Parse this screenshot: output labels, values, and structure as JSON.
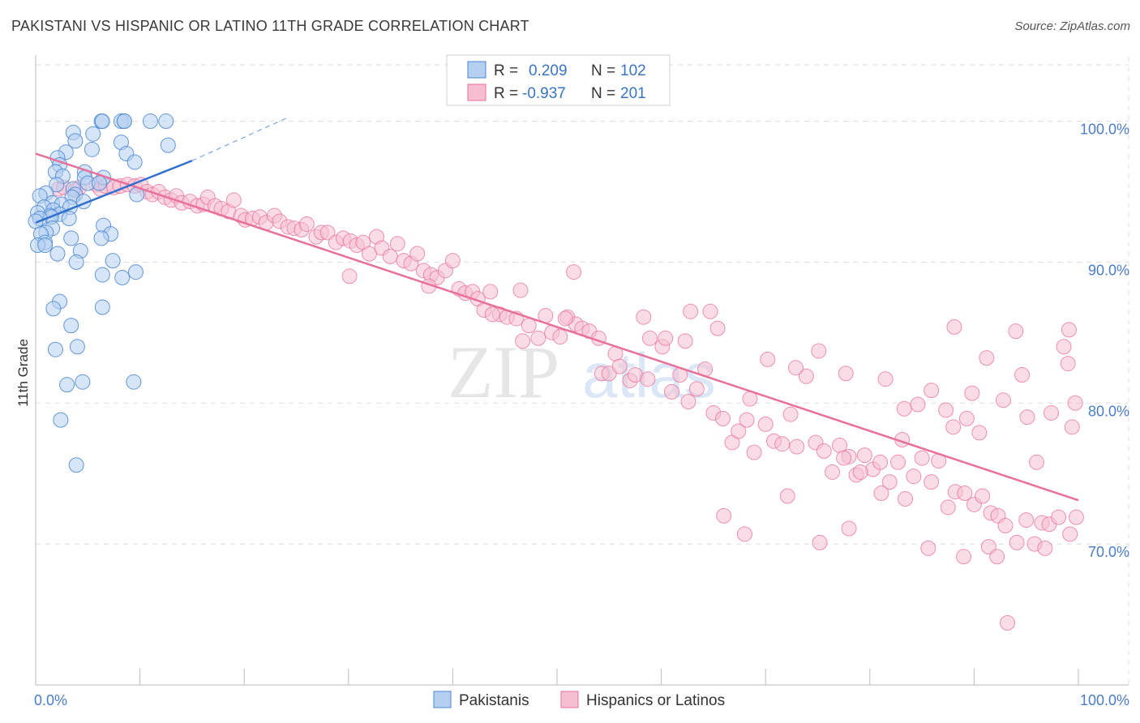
{
  "title": "PAKISTANI VS HISPANIC OR LATINO 11TH GRADE CORRELATION CHART",
  "source": "Source: ZipAtlas.com",
  "watermark": {
    "zip": "ZIP",
    "atlas": "atlas"
  },
  "colors": {
    "blue": "#4a86d4",
    "blue_fill": "#b4cff0",
    "pink": "#e8709a",
    "pink_fill": "#f6bfd1",
    "axis_label": "#4a7cc7",
    "grid": "#dddddd"
  },
  "legend": {
    "rows": [
      {
        "r_label": "R =",
        "r_value": "0.209",
        "n_label": "N =",
        "n_value": "102"
      },
      {
        "r_label": "R =",
        "r_value": "-0.937",
        "n_label": "N =",
        "n_value": "201"
      }
    ]
  },
  "bottom_legend": [
    "Pakistanis",
    "Hispanics or Latinos"
  ],
  "chart_data": {
    "type": "scatter",
    "title": "PAKISTANI VS HISPANIC OR LATINO 11TH GRADE CORRELATION CHART",
    "xlabel": "",
    "ylabel": "11th Grade",
    "xlim": [
      0,
      100
    ],
    "ylim": [
      60,
      104
    ],
    "x_tick_labels": [
      "0.0%",
      "100.0%"
    ],
    "y_ticks": [
      70,
      80,
      90,
      100
    ],
    "y_tick_labels": [
      "70.0%",
      "80.0%",
      "90.0%",
      "100.0%"
    ],
    "grid": true,
    "legend_position": "top-center",
    "series": [
      {
        "name": "Pakistanis",
        "R": 0.209,
        "N": 102,
        "trend": {
          "x0": 0,
          "y0": 92.8,
          "x1": 15,
          "y1": 97.2,
          "dash_to_x": 24,
          "dash_to_y": 100.2
        },
        "points": [
          [
            6.3,
            100
          ],
          [
            6.4,
            100
          ],
          [
            8.2,
            100
          ],
          [
            8.5,
            100
          ],
          [
            11,
            100
          ],
          [
            12.5,
            100
          ],
          [
            8.5,
            100
          ],
          [
            3.6,
            99.2
          ],
          [
            5.5,
            99.1
          ],
          [
            3.8,
            98.6
          ],
          [
            8.2,
            98.5
          ],
          [
            12.7,
            98.3
          ],
          [
            5.4,
            98
          ],
          [
            8.7,
            97.7
          ],
          [
            2.9,
            97.8
          ],
          [
            2.1,
            97.4
          ],
          [
            9.5,
            97.1
          ],
          [
            2.3,
            96.9
          ],
          [
            1.9,
            96.4
          ],
          [
            4.7,
            96.4
          ],
          [
            2.6,
            96.1
          ],
          [
            4.7,
            96
          ],
          [
            6.5,
            96
          ],
          [
            5.0,
            95.6
          ],
          [
            6.1,
            95.6
          ],
          [
            2.0,
            95.5
          ],
          [
            3.6,
            95.2
          ],
          [
            1.0,
            94.9
          ],
          [
            0.4,
            94.7
          ],
          [
            3.8,
            94.8
          ],
          [
            9.7,
            94.8
          ],
          [
            3.5,
            94.6
          ],
          [
            4.6,
            94.3
          ],
          [
            1.6,
            94.2
          ],
          [
            2.5,
            94.1
          ],
          [
            0.8,
            93.9
          ],
          [
            3.3,
            93.9
          ],
          [
            1.7,
            93.7
          ],
          [
            0.2,
            93.5
          ],
          [
            2.3,
            93.4
          ],
          [
            1.4,
            93.3
          ],
          [
            1.5,
            93.2
          ],
          [
            0.4,
            93.1
          ],
          [
            3.2,
            93.1
          ],
          [
            0.0,
            92.9
          ],
          [
            6.5,
            92.6
          ],
          [
            1.6,
            92.4
          ],
          [
            1.0,
            92.1
          ],
          [
            0.5,
            92.0
          ],
          [
            7.2,
            92.0
          ],
          [
            6.3,
            91.7
          ],
          [
            3.4,
            91.7
          ],
          [
            0.9,
            91.4
          ],
          [
            0.2,
            91.2
          ],
          [
            0.9,
            91.2
          ],
          [
            4.3,
            90.8
          ],
          [
            2.1,
            90.6
          ],
          [
            3.9,
            90.0
          ],
          [
            7.4,
            90.1
          ],
          [
            9.6,
            89.3
          ],
          [
            6.4,
            89.1
          ],
          [
            8.3,
            88.9
          ],
          [
            2.3,
            87.2
          ],
          [
            1.7,
            86.7
          ],
          [
            6.4,
            86.8
          ],
          [
            3.4,
            85.5
          ],
          [
            1.9,
            83.8
          ],
          [
            4.0,
            84.0
          ],
          [
            3.0,
            81.3
          ],
          [
            4.5,
            81.5
          ],
          [
            9.4,
            81.5
          ],
          [
            2.4,
            78.8
          ],
          [
            3.9,
            75.6
          ]
        ]
      },
      {
        "name": "Hispanics or Latinos",
        "R": -0.937,
        "N": 201,
        "trend": {
          "x0": 0,
          "y0": 97.7,
          "x1": 100,
          "y1": 73.1
        },
        "points": [
          [
            2.2,
            95.2
          ],
          [
            2.7,
            95.3
          ],
          [
            3.8,
            95.1
          ],
          [
            4.2,
            95.3
          ],
          [
            5.8,
            95.5
          ],
          [
            6.2,
            95.2
          ],
          [
            6.7,
            95.4
          ],
          [
            7.5,
            95.3
          ],
          [
            8.1,
            95.4
          ],
          [
            8.8,
            95.5
          ],
          [
            9.5,
            95.4
          ],
          [
            10.1,
            95.5
          ],
          [
            10.7,
            95.0
          ],
          [
            11.2,
            94.8
          ],
          [
            11.8,
            95.0
          ],
          [
            12.4,
            94.6
          ],
          [
            13.0,
            94.4
          ],
          [
            13.5,
            94.7
          ],
          [
            14.0,
            94.2
          ],
          [
            14.8,
            94.3
          ],
          [
            15.5,
            94.0
          ],
          [
            16.1,
            94.1
          ],
          [
            16.5,
            94.6
          ],
          [
            17.2,
            94.0
          ],
          [
            17.8,
            93.8
          ],
          [
            18.5,
            93.6
          ],
          [
            19.0,
            94.4
          ],
          [
            19.7,
            93.3
          ],
          [
            20.1,
            93.0
          ],
          [
            20.8,
            93.1
          ],
          [
            21.5,
            93.2
          ],
          [
            22.1,
            92.8
          ],
          [
            22.9,
            93.3
          ],
          [
            23.4,
            92.9
          ],
          [
            24.2,
            92.5
          ],
          [
            24.8,
            92.4
          ],
          [
            25.5,
            92.3
          ],
          [
            26.0,
            92.7
          ],
          [
            26.9,
            91.8
          ],
          [
            27.4,
            92.1
          ],
          [
            28.0,
            92.1
          ],
          [
            28.8,
            91.4
          ],
          [
            29.5,
            91.7
          ],
          [
            30.2,
            91.5
          ],
          [
            30.8,
            91.2
          ],
          [
            31.4,
            91.4
          ],
          [
            32.0,
            90.6
          ],
          [
            32.7,
            91.8
          ],
          [
            33.2,
            91.0
          ],
          [
            34.0,
            90.4
          ],
          [
            34.7,
            91.3
          ],
          [
            35.3,
            90.1
          ],
          [
            36.0,
            89.9
          ],
          [
            36.6,
            90.6
          ],
          [
            37.2,
            89.4
          ],
          [
            37.9,
            89.1
          ],
          [
            38.5,
            88.9
          ],
          [
            39.3,
            89.4
          ],
          [
            40.0,
            90.1
          ],
          [
            40.6,
            88.1
          ],
          [
            41.2,
            87.8
          ],
          [
            41.9,
            87.9
          ],
          [
            42.4,
            87.4
          ],
          [
            43.0,
            86.6
          ],
          [
            43.6,
            87.9
          ],
          [
            44.5,
            86.3
          ],
          [
            45.2,
            86.1
          ],
          [
            46.1,
            86.0
          ],
          [
            46.7,
            84.4
          ],
          [
            47.3,
            85.5
          ],
          [
            48.2,
            84.6
          ],
          [
            48.9,
            86.2
          ],
          [
            49.5,
            85.0
          ],
          [
            50.3,
            84.7
          ],
          [
            51.0,
            86.1
          ],
          [
            51.8,
            85.6
          ],
          [
            52.4,
            85.3
          ],
          [
            53.1,
            85.1
          ],
          [
            54.3,
            82.1
          ],
          [
            55.0,
            82.1
          ],
          [
            55.6,
            83.5
          ],
          [
            57.0,
            81.6
          ],
          [
            57.5,
            82.0
          ],
          [
            58.3,
            86.1
          ],
          [
            58.9,
            84.6
          ],
          [
            60.1,
            84.0
          ],
          [
            61.0,
            80.8
          ],
          [
            61.8,
            82.0
          ],
          [
            62.6,
            80.1
          ],
          [
            63.4,
            81.0
          ],
          [
            64.2,
            82.4
          ],
          [
            65.0,
            79.3
          ],
          [
            65.9,
            78.9
          ],
          [
            66.8,
            77.2
          ],
          [
            67.4,
            78.0
          ],
          [
            68.2,
            78.8
          ],
          [
            68.9,
            76.5
          ],
          [
            70.0,
            78.5
          ],
          [
            70.8,
            77.3
          ],
          [
            71.6,
            77.1
          ],
          [
            72.4,
            79.2
          ],
          [
            73.0,
            76.9
          ],
          [
            73.9,
            81.9
          ],
          [
            74.8,
            77.2
          ],
          [
            75.6,
            76.6
          ],
          [
            76.4,
            75.1
          ],
          [
            77.1,
            77.0
          ],
          [
            78.0,
            76.2
          ],
          [
            78.7,
            74.9
          ],
          [
            79.5,
            76.3
          ],
          [
            80.3,
            75.3
          ],
          [
            81.0,
            75.8
          ],
          [
            81.9,
            74.4
          ],
          [
            82.7,
            75.8
          ],
          [
            83.4,
            73.2
          ],
          [
            84.2,
            74.8
          ],
          [
            85.0,
            76.1
          ],
          [
            85.9,
            74.4
          ],
          [
            86.6,
            75.9
          ],
          [
            87.5,
            72.6
          ],
          [
            88.2,
            73.7
          ],
          [
            89.1,
            73.6
          ],
          [
            90.0,
            72.8
          ],
          [
            90.8,
            73.4
          ],
          [
            91.6,
            72.2
          ],
          [
            92.3,
            72.0
          ],
          [
            93.0,
            71.3
          ],
          [
            94.1,
            70.1
          ],
          [
            95.0,
            71.7
          ],
          [
            95.8,
            70.0
          ],
          [
            96.5,
            71.5
          ],
          [
            97.2,
            71.4
          ],
          [
            98.1,
            71.9
          ],
          [
            99.2,
            70.7
          ],
          [
            99.8,
            71.9
          ],
          [
            30.1,
            89.0
          ],
          [
            37.7,
            88.3
          ],
          [
            43.8,
            86.3
          ],
          [
            46.5,
            88.0
          ],
          [
            50.8,
            86.0
          ],
          [
            51.6,
            89.3
          ],
          [
            54.0,
            84.6
          ],
          [
            56.0,
            82.6
          ],
          [
            58.7,
            81.7
          ],
          [
            60.4,
            84.6
          ],
          [
            62.3,
            84.4
          ],
          [
            64.7,
            86.5
          ],
          [
            65.4,
            85.3
          ],
          [
            68.5,
            80.3
          ],
          [
            70.2,
            83.1
          ],
          [
            72.9,
            82.5
          ],
          [
            75.1,
            83.7
          ],
          [
            77.5,
            76.1
          ],
          [
            79.1,
            75.1
          ],
          [
            81.5,
            81.7
          ],
          [
            83.1,
            77.4
          ],
          [
            84.6,
            79.9
          ],
          [
            85.9,
            80.9
          ],
          [
            87.3,
            79.5
          ],
          [
            88.0,
            78.3
          ],
          [
            89.3,
            78.9
          ],
          [
            90.5,
            77.9
          ],
          [
            91.2,
            83.2
          ],
          [
            92.8,
            80.2
          ],
          [
            94.6,
            82.0
          ],
          [
            96.0,
            75.8
          ],
          [
            97.4,
            79.3
          ],
          [
            98.6,
            84.0
          ],
          [
            99.0,
            82.8
          ],
          [
            99.7,
            80.0
          ],
          [
            66.0,
            72.0
          ],
          [
            68.0,
            70.7
          ],
          [
            72.1,
            73.4
          ],
          [
            75.2,
            70.1
          ],
          [
            78.0,
            71.1
          ],
          [
            81.1,
            73.6
          ],
          [
            85.6,
            69.7
          ],
          [
            89.0,
            69.1
          ],
          [
            91.4,
            69.8
          ],
          [
            92.2,
            69.1
          ],
          [
            93.2,
            64.4
          ],
          [
            96.8,
            69.7
          ],
          [
            99.4,
            78.3
          ],
          [
            88.1,
            85.4
          ],
          [
            94.0,
            85.1
          ],
          [
            99.1,
            85.2
          ],
          [
            62.8,
            86.5
          ],
          [
            77.7,
            82.1
          ],
          [
            83.3,
            79.6
          ],
          [
            89.8,
            80.7
          ],
          [
            95.1,
            79.0
          ]
        ]
      }
    ]
  }
}
